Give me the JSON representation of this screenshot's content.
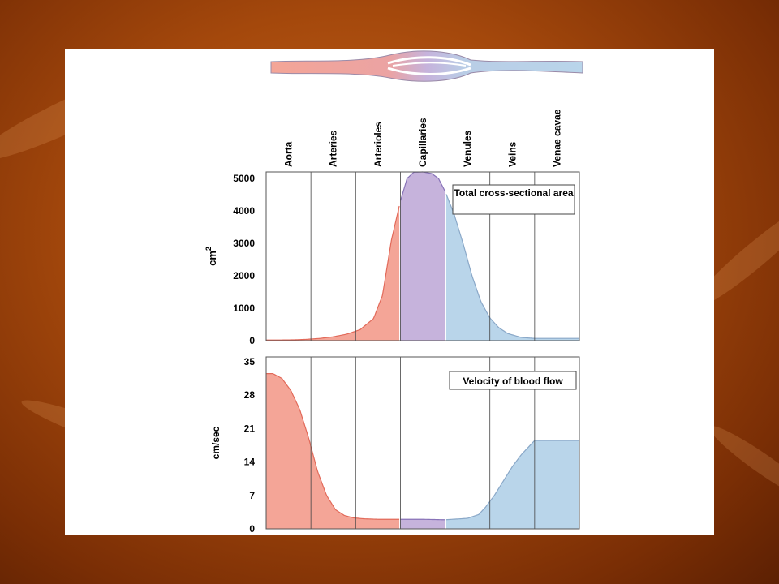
{
  "categories": [
    "Aorta",
    "Arteries",
    "Arterioles",
    "Capillaries",
    "Venules",
    "Veins",
    "Venae cavae"
  ],
  "colors": {
    "arterial": "#f4a597",
    "capillary": "#c6b3dc",
    "venous": "#b9d5ea",
    "arterial_line": "#e26a5a",
    "venous_line": "#8aa8c8",
    "capillary_line": "#8873b8"
  },
  "chart_data": [
    {
      "type": "area",
      "annotation": "Total cross-sectional area",
      "ylabel": "cm",
      "ylabel_superscript": "2",
      "ylim": [
        0,
        5200
      ],
      "yticks": [
        0,
        1000,
        2000,
        3000,
        4000,
        5000
      ],
      "x": [
        0,
        0.3,
        0.6,
        0.9,
        1.2,
        1.5,
        1.8,
        2.1,
        2.4,
        2.6,
        2.8,
        3.0,
        3.15,
        3.3,
        3.5,
        3.7,
        3.85,
        4.0,
        4.2,
        4.4,
        4.6,
        4.8,
        5.0,
        5.2,
        5.4,
        5.7,
        6.0
      ],
      "values": [
        20,
        20,
        25,
        40,
        70,
        120,
        200,
        340,
        680,
        1400,
        3100,
        4300,
        5000,
        5190,
        5200,
        5150,
        5000,
        4600,
        3900,
        3000,
        2000,
        1200,
        700,
        400,
        220,
        100,
        70
      ]
    },
    {
      "type": "area",
      "annotation": "Velocity of blood flow",
      "ylabel": "cm/sec",
      "ylim": [
        0,
        36
      ],
      "yticks": [
        0,
        7,
        14,
        21,
        28,
        35
      ],
      "x": [
        0,
        0.15,
        0.35,
        0.55,
        0.75,
        0.95,
        1.15,
        1.35,
        1.55,
        1.75,
        1.95,
        2.2,
        2.5,
        3.0,
        3.5,
        4.0,
        4.5,
        4.75,
        4.9,
        5.1,
        5.3,
        5.5,
        5.7,
        6.0
      ],
      "values": [
        32.5,
        32.5,
        31.5,
        29,
        25,
        19,
        12,
        7,
        4,
        2.8,
        2.3,
        2.1,
        2.0,
        2.0,
        2.0,
        1.9,
        2.2,
        3.0,
        4.5,
        7,
        10,
        13,
        15.5,
        18.5
      ]
    }
  ]
}
